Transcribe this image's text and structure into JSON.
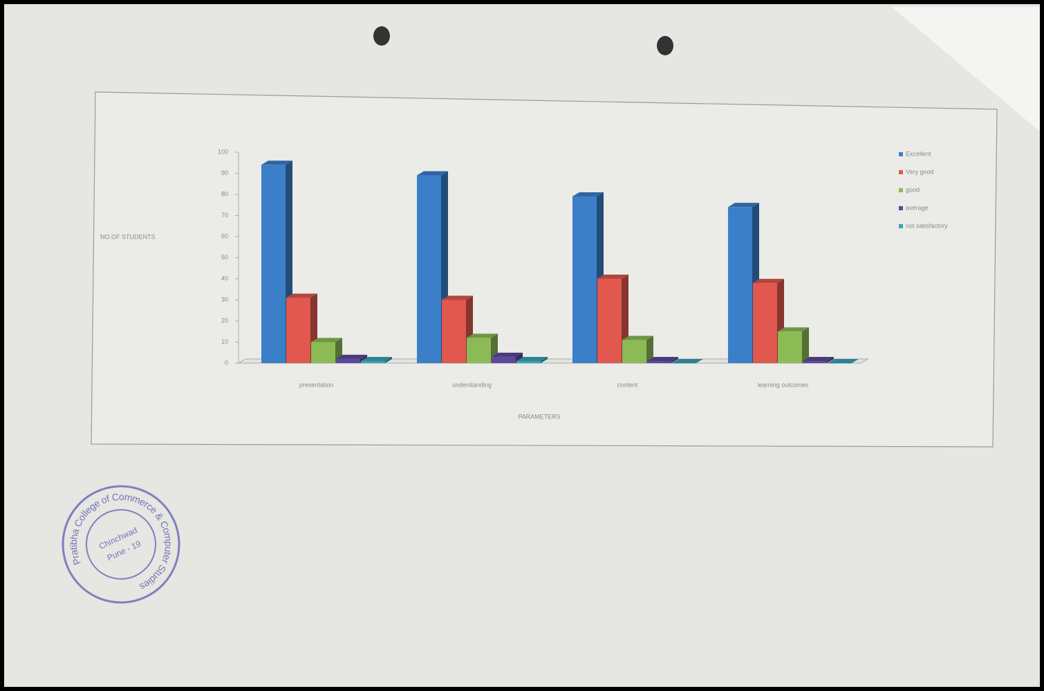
{
  "chart_data": {
    "type": "bar3d",
    "x_label": "PARAMETERS",
    "y_label": "NO.OF STUDENTS",
    "categories": [
      "presentation",
      "understanding",
      "content",
      "learning outcomes"
    ],
    "series": [
      {
        "name": "Excellent",
        "color": "#3b7fc9",
        "values": [
          94,
          89,
          79,
          74
        ]
      },
      {
        "name": "Very good",
        "color": "#e0584e",
        "values": [
          31,
          30,
          40,
          38
        ]
      },
      {
        "name": "good",
        "color": "#8cbb55",
        "values": [
          10,
          12,
          11,
          15
        ]
      },
      {
        "name": "average",
        "color": "#5b4a9a",
        "values": [
          2,
          3,
          1,
          1
        ]
      },
      {
        "name": "not satisfactory",
        "color": "#3aa3b5",
        "values": [
          1,
          1,
          0,
          0
        ]
      }
    ],
    "ylim": [
      0,
      100
    ],
    "yticks": [
      0,
      10,
      20,
      30,
      40,
      50,
      60,
      70,
      80,
      90,
      100
    ],
    "legend": "right"
  },
  "stamp": {
    "outer": "Pratibha College of Commerce & Computer Studies",
    "inner": [
      "Chinchwad",
      "Pune - 19"
    ]
  }
}
